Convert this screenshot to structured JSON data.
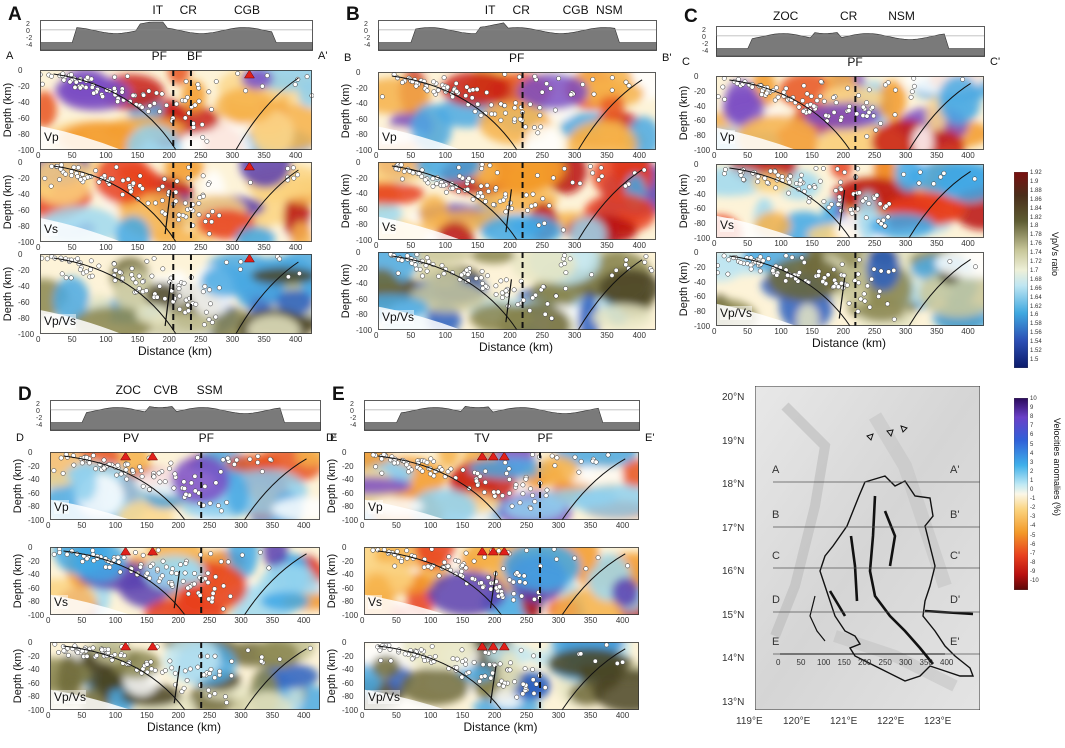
{
  "panels": {
    "A": {
      "letter": "A",
      "topo": [
        "IT",
        "CR",
        "CGB"
      ],
      "start": "A",
      "end": "A'",
      "faults": [
        "PF",
        "BF"
      ],
      "rows": [
        "Vp",
        "Vs",
        "Vp/Vs"
      ],
      "xlabel": "Distance (km)"
    },
    "B": {
      "letter": "B",
      "topo": [
        "IT",
        "CR",
        "CGB",
        "NSM"
      ],
      "start": "B",
      "end": "B'",
      "faults": [
        "PF"
      ],
      "rows": [
        "Vp",
        "Vs",
        "Vp/Vs"
      ],
      "xlabel": "Distance (km)"
    },
    "C": {
      "letter": "C",
      "topo": [
        "ZOC",
        "CR",
        "NSM"
      ],
      "start": "C",
      "end": "C'",
      "faults": [
        "PF"
      ],
      "rows": [
        "Vp",
        "Vs",
        "Vp/Vs"
      ],
      "xlabel": "Distance (km)"
    },
    "D": {
      "letter": "D",
      "topo": [
        "ZOC",
        "CVB",
        "SSM"
      ],
      "start": "D",
      "end": "D'",
      "faults": [
        "PV",
        "PF"
      ],
      "rows": [
        "Vp",
        "Vs",
        "Vp/Vs"
      ],
      "xlabel": "Distance (km)"
    },
    "E": {
      "letter": "E",
      "topo": [],
      "start": "E",
      "end": "E'",
      "faults": [
        "TV",
        "PF"
      ],
      "rows": [
        "Vp",
        "Vs",
        "Vp/Vs"
      ],
      "xlabel": "Distance (km)"
    }
  },
  "depth_label": "Depth (km)",
  "depth_ticks": [
    "0",
    "-20",
    "-40",
    "-60",
    "-80",
    "-100"
  ],
  "dist_ticks": [
    "0",
    "50",
    "100",
    "150",
    "200",
    "250",
    "300",
    "350",
    "400"
  ],
  "topo_ticks": [
    "2",
    "0",
    "-2",
    "-4"
  ],
  "colorbar_ratio": {
    "label": "Vp/Vs ratio",
    "ticks": [
      "1.92",
      "1.9",
      "1.88",
      "1.86",
      "1.84",
      "1.82",
      "1.8",
      "1.78",
      "1.76",
      "1.74",
      "1.72",
      "1.7",
      "1.68",
      "1.66",
      "1.64",
      "1.62",
      "1.6",
      "1.58",
      "1.56",
      "1.54",
      "1.52",
      "1.5"
    ]
  },
  "colorbar_vel": {
    "label": "Velocities anomalies (%)",
    "ticks": [
      "10",
      "9",
      "8",
      "7",
      "6",
      "5",
      "4",
      "3",
      "2",
      "1",
      "0",
      "-1",
      "-2",
      "-3",
      "-4",
      "-5",
      "-6",
      "-7",
      "-8",
      "-9",
      "-10"
    ]
  },
  "map": {
    "lat_labels": [
      "20°N",
      "19°N",
      "18°N",
      "17°N",
      "16°N",
      "15°N",
      "14°N",
      "13°N"
    ],
    "lon_labels": [
      "119°E",
      "120°E",
      "121°E",
      "122°E",
      "123°E"
    ],
    "profiles": [
      {
        "start": "A",
        "end": "A'"
      },
      {
        "start": "B",
        "end": "B'"
      },
      {
        "start": "C",
        "end": "C'"
      },
      {
        "start": "D",
        "end": "D'"
      },
      {
        "start": "E",
        "end": "E'"
      }
    ],
    "scale_ticks": [
      "0",
      "50",
      "100",
      "150",
      "200",
      "250",
      "300",
      "350",
      "400"
    ]
  },
  "colors": {
    "slow": "#d7301f",
    "fast": "#4fa3e0",
    "high_ratio": "#5a5a2a",
    "volcano": "#e0201a"
  }
}
